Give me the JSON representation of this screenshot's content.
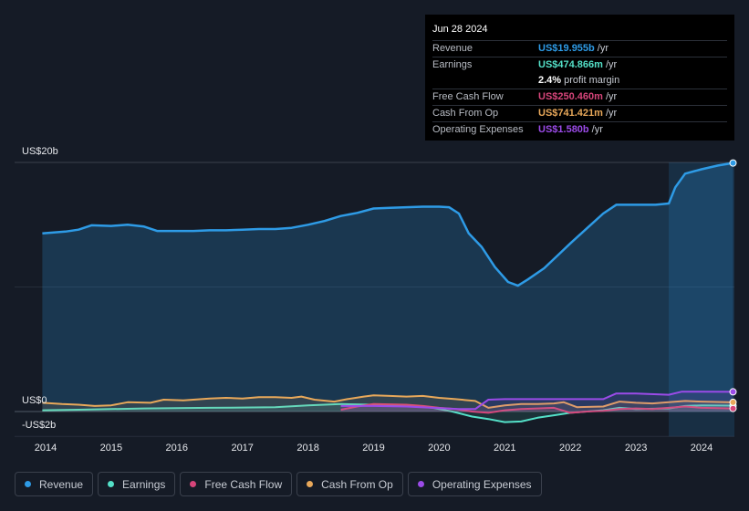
{
  "tooltip": {
    "date": "Jun 28 2024",
    "rows": [
      {
        "label": "Revenue",
        "value": "US$19.955b",
        "unit": "/yr",
        "color": "#2e9be6"
      },
      {
        "label": "Earnings",
        "value": "US$474.866m",
        "unit": "/yr",
        "color": "#54e0c8"
      },
      {
        "label": "",
        "value": "2.4%",
        "unit": "profit margin",
        "color": "#ffffff"
      },
      {
        "label": "Free Cash Flow",
        "value": "US$250.460m",
        "unit": "/yr",
        "color": "#d6457a"
      },
      {
        "label": "Cash From Op",
        "value": "US$741.421m",
        "unit": "/yr",
        "color": "#e8a85a"
      },
      {
        "label": "Operating Expenses",
        "value": "US$1.580b",
        "unit": "/yr",
        "color": "#9b4be8"
      }
    ]
  },
  "axis": {
    "y_top_label": "US$20b",
    "y_zero_label": "US$0",
    "y_bottom_label": "-US$2b"
  },
  "legend": [
    {
      "label": "Revenue",
      "color": "#2e9be6"
    },
    {
      "label": "Earnings",
      "color": "#54e0c8"
    },
    {
      "label": "Free Cash Flow",
      "color": "#d6457a"
    },
    {
      "label": "Cash From Op",
      "color": "#e8a85a"
    },
    {
      "label": "Operating Expenses",
      "color": "#9b4be8"
    }
  ],
  "chart_data": {
    "type": "area",
    "x_ticks": [
      "2014",
      "2015",
      "2016",
      "2017",
      "2018",
      "2019",
      "2020",
      "2021",
      "2022",
      "2023",
      "2024"
    ],
    "ylim": [
      -2,
      20
    ],
    "y_unit": "US$ billions",
    "highlight_from": 2023.5,
    "series": [
      {
        "name": "Revenue",
        "color": "#2e9be6",
        "points": [
          [
            2013.95,
            14.3
          ],
          [
            2014.3,
            14.45
          ],
          [
            2014.5,
            14.6
          ],
          [
            2014.7,
            14.95
          ],
          [
            2015.0,
            14.9
          ],
          [
            2015.25,
            15.0
          ],
          [
            2015.5,
            14.85
          ],
          [
            2015.7,
            14.5
          ],
          [
            2016.0,
            14.5
          ],
          [
            2016.25,
            14.5
          ],
          [
            2016.5,
            14.55
          ],
          [
            2016.75,
            14.55
          ],
          [
            2017.0,
            14.6
          ],
          [
            2017.25,
            14.65
          ],
          [
            2017.5,
            14.65
          ],
          [
            2017.75,
            14.75
          ],
          [
            2018.0,
            15.0
          ],
          [
            2018.25,
            15.3
          ],
          [
            2018.5,
            15.7
          ],
          [
            2018.75,
            15.95
          ],
          [
            2019.0,
            16.3
          ],
          [
            2019.25,
            16.35
          ],
          [
            2019.5,
            16.4
          ],
          [
            2019.75,
            16.45
          ],
          [
            2020.0,
            16.45
          ],
          [
            2020.15,
            16.4
          ],
          [
            2020.3,
            15.9
          ],
          [
            2020.45,
            14.3
          ],
          [
            2020.65,
            13.2
          ],
          [
            2020.85,
            11.6
          ],
          [
            2021.05,
            10.4
          ],
          [
            2021.2,
            10.1
          ],
          [
            2021.35,
            10.6
          ],
          [
            2021.6,
            11.5
          ],
          [
            2021.8,
            12.5
          ],
          [
            2022.0,
            13.5
          ],
          [
            2022.25,
            14.7
          ],
          [
            2022.5,
            15.9
          ],
          [
            2022.7,
            16.6
          ],
          [
            2022.9,
            16.6
          ],
          [
            2023.1,
            16.6
          ],
          [
            2023.3,
            16.6
          ],
          [
            2023.5,
            16.7
          ],
          [
            2023.6,
            18.0
          ],
          [
            2023.75,
            19.1
          ],
          [
            2024.0,
            19.45
          ],
          [
            2024.25,
            19.75
          ],
          [
            2024.48,
            19.955
          ]
        ]
      },
      {
        "name": "Earnings",
        "color": "#54e0c8",
        "points": [
          [
            2013.95,
            0.1
          ],
          [
            2014.5,
            0.15
          ],
          [
            2015.0,
            0.2
          ],
          [
            2015.5,
            0.25
          ],
          [
            2016.0,
            0.28
          ],
          [
            2016.5,
            0.3
          ],
          [
            2017.0,
            0.32
          ],
          [
            2017.5,
            0.35
          ],
          [
            2018.0,
            0.5
          ],
          [
            2018.5,
            0.6
          ],
          [
            2019.0,
            0.55
          ],
          [
            2019.5,
            0.5
          ],
          [
            2019.9,
            0.3
          ],
          [
            2020.2,
            0.0
          ],
          [
            2020.5,
            -0.4
          ],
          [
            2020.75,
            -0.6
          ],
          [
            2021.0,
            -0.85
          ],
          [
            2021.25,
            -0.8
          ],
          [
            2021.5,
            -0.5
          ],
          [
            2021.75,
            -0.3
          ],
          [
            2022.0,
            -0.1
          ],
          [
            2022.5,
            0.1
          ],
          [
            2022.75,
            0.3
          ],
          [
            2023.0,
            0.2
          ],
          [
            2023.5,
            0.25
          ],
          [
            2023.75,
            0.45
          ],
          [
            2024.0,
            0.5
          ],
          [
            2024.48,
            0.475
          ]
        ]
      },
      {
        "name": "Free Cash Flow",
        "color": "#d6457a",
        "points": [
          [
            2018.5,
            0.15
          ],
          [
            2018.75,
            0.4
          ],
          [
            2019.0,
            0.6
          ],
          [
            2019.5,
            0.55
          ],
          [
            2019.75,
            0.45
          ],
          [
            2020.0,
            0.3
          ],
          [
            2020.25,
            0.2
          ],
          [
            2020.5,
            0.0
          ],
          [
            2020.75,
            -0.1
          ],
          [
            2021.0,
            0.1
          ],
          [
            2021.25,
            0.2
          ],
          [
            2021.5,
            0.25
          ],
          [
            2021.75,
            0.3
          ],
          [
            2022.0,
            -0.1
          ],
          [
            2022.25,
            0.0
          ],
          [
            2022.5,
            0.05
          ],
          [
            2022.75,
            0.2
          ],
          [
            2023.0,
            0.25
          ],
          [
            2023.25,
            0.2
          ],
          [
            2023.5,
            0.3
          ],
          [
            2023.75,
            0.4
          ],
          [
            2024.0,
            0.3
          ],
          [
            2024.48,
            0.25
          ]
        ]
      },
      {
        "name": "Cash From Op",
        "color": "#e8a85a",
        "points": [
          [
            2013.95,
            0.7
          ],
          [
            2014.25,
            0.6
          ],
          [
            2014.5,
            0.55
          ],
          [
            2014.75,
            0.45
          ],
          [
            2015.0,
            0.5
          ],
          [
            2015.25,
            0.75
          ],
          [
            2015.6,
            0.7
          ],
          [
            2015.8,
            0.95
          ],
          [
            2016.1,
            0.9
          ],
          [
            2016.5,
            1.05
          ],
          [
            2016.75,
            1.1
          ],
          [
            2017.0,
            1.05
          ],
          [
            2017.25,
            1.15
          ],
          [
            2017.5,
            1.15
          ],
          [
            2017.75,
            1.1
          ],
          [
            2017.9,
            1.2
          ],
          [
            2018.1,
            0.95
          ],
          [
            2018.4,
            0.8
          ],
          [
            2018.6,
            1.0
          ],
          [
            2018.85,
            1.2
          ],
          [
            2019.0,
            1.3
          ],
          [
            2019.25,
            1.25
          ],
          [
            2019.5,
            1.2
          ],
          [
            2019.75,
            1.25
          ],
          [
            2020.0,
            1.1
          ],
          [
            2020.25,
            1.0
          ],
          [
            2020.55,
            0.85
          ],
          [
            2020.75,
            0.3
          ],
          [
            2021.0,
            0.5
          ],
          [
            2021.25,
            0.6
          ],
          [
            2021.5,
            0.6
          ],
          [
            2021.75,
            0.65
          ],
          [
            2021.9,
            0.75
          ],
          [
            2022.1,
            0.35
          ],
          [
            2022.5,
            0.4
          ],
          [
            2022.75,
            0.8
          ],
          [
            2023.0,
            0.7
          ],
          [
            2023.25,
            0.65
          ],
          [
            2023.5,
            0.75
          ],
          [
            2023.75,
            0.85
          ],
          [
            2024.0,
            0.8
          ],
          [
            2024.48,
            0.74
          ]
        ]
      },
      {
        "name": "Operating Expenses",
        "color": "#9b4be8",
        "points": [
          [
            2018.5,
            0.45
          ],
          [
            2019.0,
            0.45
          ],
          [
            2019.5,
            0.4
          ],
          [
            2019.9,
            0.3
          ],
          [
            2020.3,
            0.2
          ],
          [
            2020.55,
            0.2
          ],
          [
            2020.75,
            0.95
          ],
          [
            2021.0,
            1.0
          ],
          [
            2021.5,
            1.0
          ],
          [
            2022.0,
            1.0
          ],
          [
            2022.5,
            1.0
          ],
          [
            2022.7,
            1.45
          ],
          [
            2023.0,
            1.45
          ],
          [
            2023.5,
            1.35
          ],
          [
            2023.7,
            1.6
          ],
          [
            2024.0,
            1.6
          ],
          [
            2024.48,
            1.58
          ]
        ]
      }
    ]
  }
}
